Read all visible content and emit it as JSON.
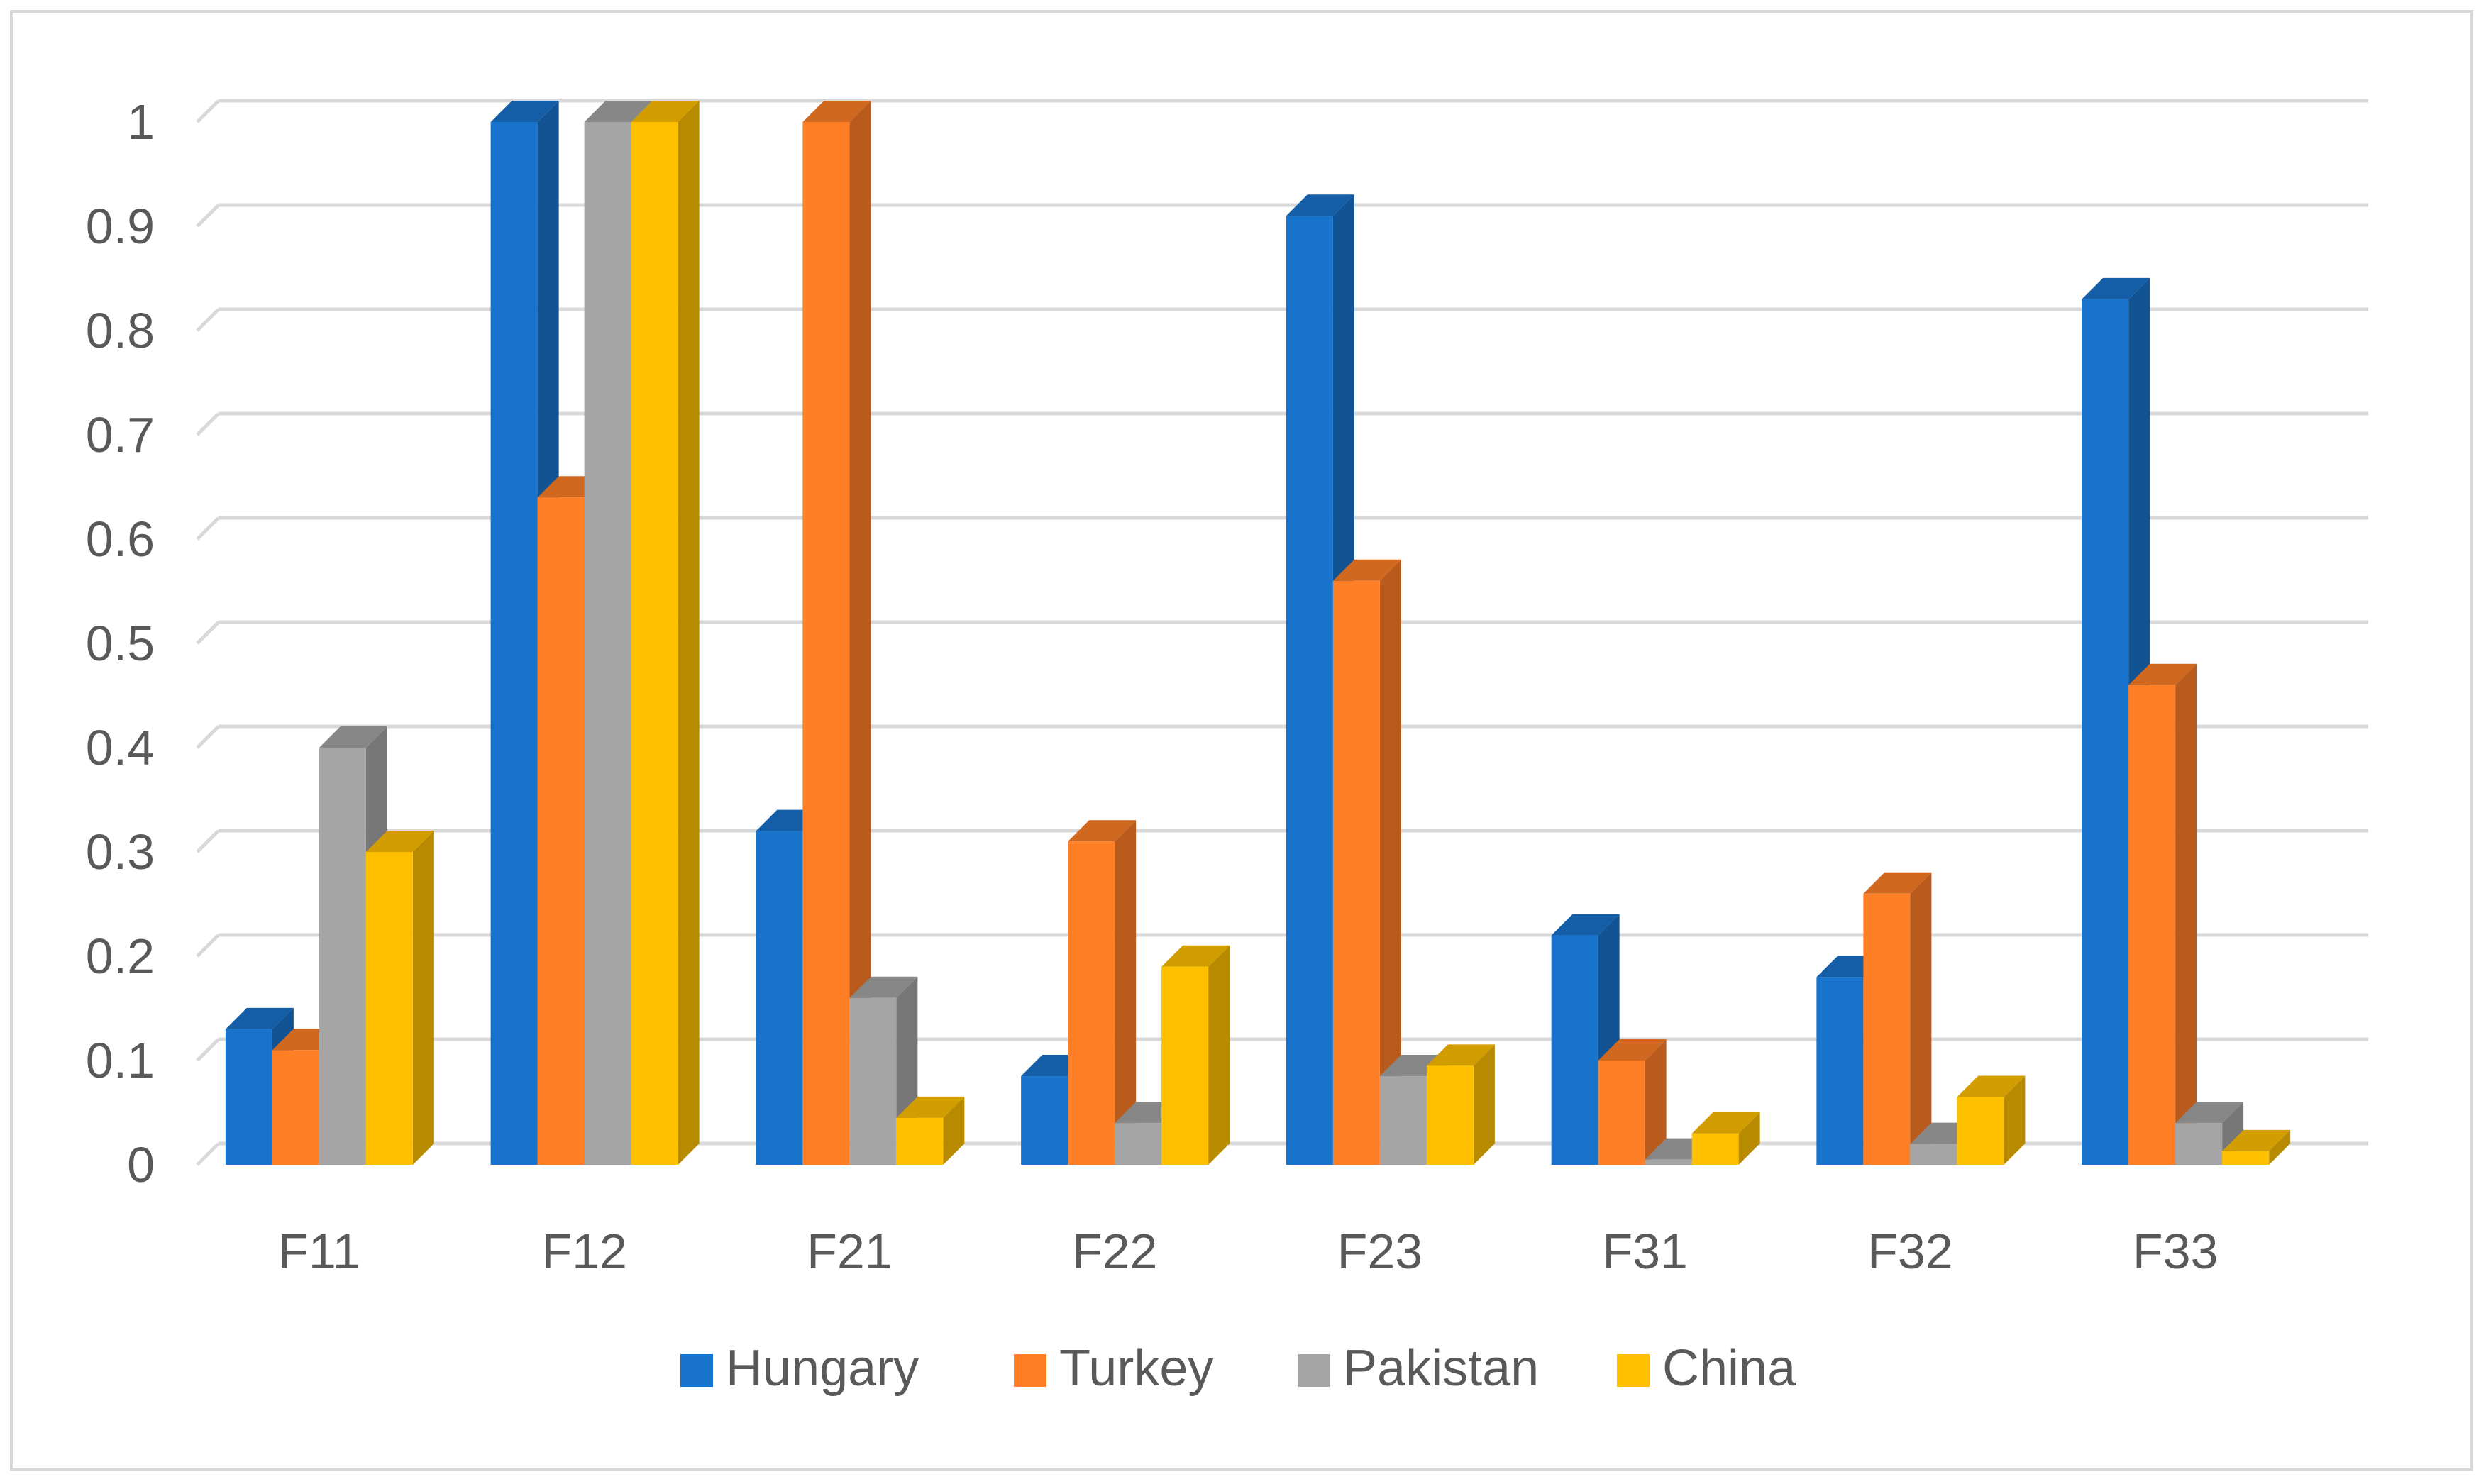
{
  "chart_data": {
    "type": "bar",
    "categories": [
      "F11",
      "F12",
      "F21",
      "F22",
      "F23",
      "F31",
      "F32",
      "F33"
    ],
    "series": [
      {
        "name": "Hungary",
        "color": "#1773CC",
        "values": [
          0.13,
          1.0,
          0.32,
          0.085,
          0.91,
          0.22,
          0.18,
          0.83
        ]
      },
      {
        "name": "Turkey",
        "color": "#FF7F27",
        "values": [
          0.11,
          0.64,
          1.0,
          0.31,
          0.56,
          0.1,
          0.26,
          0.46
        ]
      },
      {
        "name": "Pakistan",
        "color": "#A5A5A5",
        "values": [
          0.4,
          1.0,
          0.16,
          0.04,
          0.085,
          0.005,
          0.02,
          0.04
        ]
      },
      {
        "name": "China",
        "color": "#FFC000",
        "values": [
          0.3,
          1.0,
          0.045,
          0.19,
          0.095,
          0.03,
          0.065,
          0.013
        ]
      }
    ],
    "yticks": [
      "0",
      "0.1",
      "0.2",
      "0.3",
      "0.4",
      "0.5",
      "0.6",
      "0.7",
      "0.8",
      "0.9",
      "1"
    ],
    "ylim": [
      0,
      1
    ],
    "grid": true,
    "legend_position": "bottom",
    "style": "3d-clustered-column"
  }
}
